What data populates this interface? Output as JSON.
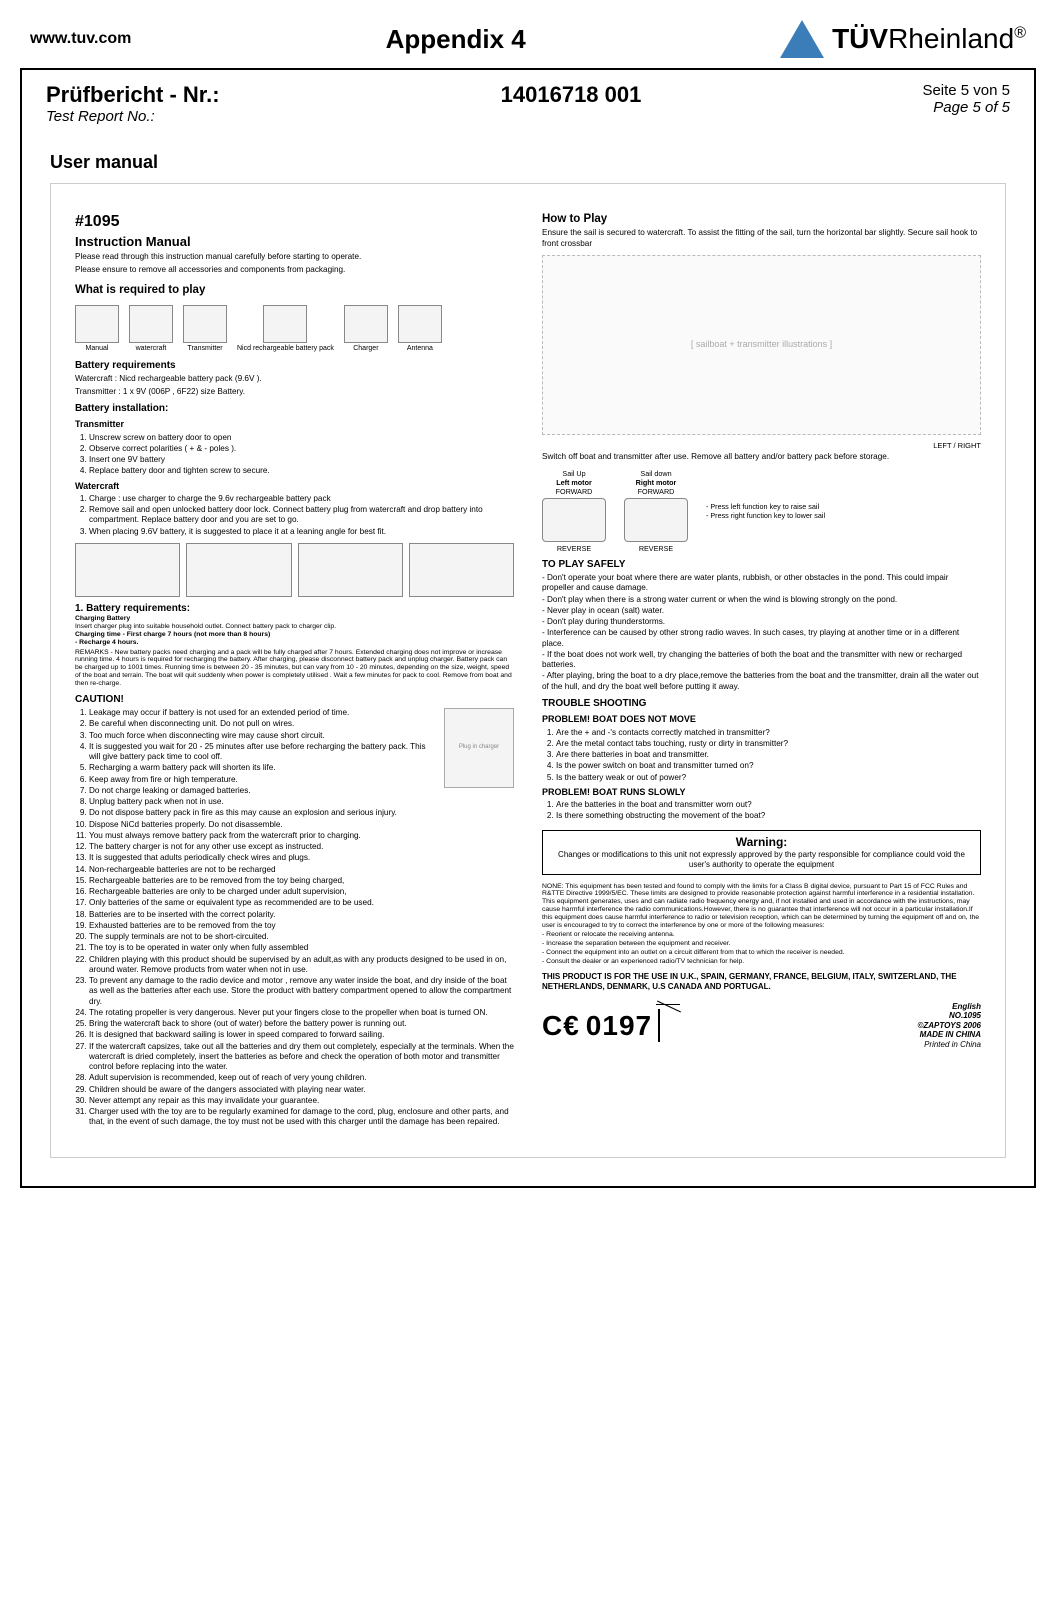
{
  "header": {
    "url": "www.tuv.com",
    "appendix": "Appendix 4",
    "logo_text_1": "TÜV",
    "logo_text_2": "Rheinland",
    "logo_reg": "®"
  },
  "report": {
    "title_de": "Prüfbericht - Nr.:",
    "title_en": "Test Report No.:",
    "number": "14016718 001",
    "page_de": "Seite 5 von 5",
    "page_en": "Page 5 of 5",
    "section": "User manual"
  },
  "manual": {
    "model": "#1095",
    "title": "Instruction Manual",
    "intro1": "Please read through this instruction manual carefully before starting to operate.",
    "intro2": "Please ensure to remove all accessories and components from packaging.",
    "h_required": "What is required to play",
    "icons": [
      "Manual",
      "watercraft",
      "Transmitter",
      "Nicd rechargeable battery pack",
      "Charger",
      "Antenna"
    ],
    "h_battery_req": "Battery requirements",
    "battery_req1": "Watercraft : Nicd rechargeable battery pack (9.6V ).",
    "battery_req2": "Transmitter : 1 x 9V (006P , 6F22) size Battery.",
    "h_batt_install": "Battery installation:",
    "h_transmitter": "Transmitter",
    "transmitter_steps": [
      "Unscrew screw on battery door to open",
      "Observe correct polarities ( + & - poles ).",
      "Insert one 9V battery",
      "Replace battery door and tighten screw to secure."
    ],
    "h_watercraft": "Watercraft",
    "watercraft_steps": [
      "Charge : use charger to charge the 9.6v rechargeable battery pack",
      "Remove sail and open unlocked battery door lock. Connect battery plug from watercraft and drop battery into compartment. Replace battery door and you are set to go.",
      "When placing 9.6V battery, it is suggested to place it at a leaning angle for best fit."
    ],
    "h_batt_req2": "1. Battery requirements:",
    "charging_head": "Charging Battery",
    "charging_l1": "Insert charger plug into suitable household outlet. Connect battery pack to charger clip.",
    "charging_l2": "Charging time - First charge 7 hours (not more than 8 hours)",
    "charging_l3": "- Recharge 4 hours.",
    "remarks": "REMARKS - New battery packs need charging and a pack will be fully charged after 7 hours. Extended charging does not improve or increase running time. 4 hours is required for recharging the battery. After charging, please disconnect battery pack and unplug charger. Battery pack can be charged up to 1001 times. Running time is between 20 - 35 minutes, but can vary from 10 - 20 minutes, depending on the size, weight, speed of the boat and terrain. The boat will quit suddenly when power is completely utilised . Wait a few minutes for pack to cool. Remove from boat and then re-charge.",
    "h_caution": "CAUTION!",
    "caution_items": [
      "Leakage may occur if battery is not used for an extended period of time.",
      "Be careful when disconnecting unit. Do not pull on wires.",
      "Too much force when disconnecting wire may cause short circuit.",
      "It is suggested you wait for 20 - 25 minutes after use before recharging the battery pack. This will give battery pack time to cool off.",
      "Recharging a warm battery pack will shorten its life.",
      "Keep away from fire or high temperature.",
      "Do not charge leaking or damaged batteries.",
      "Unplug battery pack when not in use.",
      "Do not dispose battery pack in fire as this may cause an explosion and serious injury.",
      "Dispose NiCd batteries properly. Do not disassemble.",
      "You must always remove battery pack from the watercraft prior to charging.",
      "The battery charger is not for any other use except as instructed.",
      "It is suggested that adults periodically check wires and plugs.",
      "Non-rechargeable batteries are not to be recharged",
      "Rechargeable batteries are to be removed from the toy being charged,",
      "Rechargeable batteries are only to be charged under adult supervision,",
      "Only batteries of the same or equivalent type as recommended are to be used.",
      "Batteries are to be inserted with the correct polarity.",
      "Exhausted batteries are to be removed from the toy",
      "The supply terminals are not to be short-circuited.",
      "The toy is to be operated in water only when fully assembled",
      "Children playing  with this product should be supervised by an adult,as with any products designed to be  used in on, around water. Remove products from water when not in use.",
      "To prevent any damage to the radio device and motor , remove any water inside the boat, and dry inside of the boat as  well as the batteries after each use. Store the product with battery compartment opened to allow the compartment dry.",
      "The rotating propeller is very dangerous. Never put your fingers close to the propeller when boat is turned ON.",
      "Bring the watercraft back to shore (out of water) before the battery power is running out.",
      "It is designed that backward sailing is lower in speed compared to forward sailing.",
      "If the watercraft capsizes, take out all the batteries and dry them out completely, especially at the terminals. When the watercraft is dried completely, insert the batteries as before and check the operation of both motor and transmitter control before  replacing into the water.",
      "Adult supervision is recommended, keep out of reach of very young children.",
      "Children should be aware of the dangers associated with playing near water.",
      "Never attempt any repair as this may invalidate your guarantee.",
      "Charger used with the toy are to be regularly examined for damage to the cord, plug, enclosure and other parts, and that, in the event of such damage, the toy must not be used with this charger until the damage has been repaired."
    ],
    "h_howplay": "How to Play",
    "howplay_p": "Ensure the sail is secured to watercraft. To assist the fitting of the sail, turn the horizontal bar slightly. Secure sail hook to front crossbar",
    "lr_label": "LEFT / RIGHT",
    "switchoff": "Switch off boat and  transmitter after use. Remove all battery and/or battery pack before storage.",
    "sailup": "Sail Up",
    "saildown": "Sail down",
    "leftmotor": "Left motor",
    "rightmotor": "Right motor",
    "forward": "FORWARD",
    "reverse": "REVERSE",
    "motor_notes": [
      "- Press left function key to raise sail",
      "- Press right function key to lower sail"
    ],
    "h_playsafe": "TO PLAY SAFELY",
    "playsafe_items": [
      "Don't operate your boat where there are water plants, rubbish, or other obstacles in the pond. This could impair propeller and cause damage.",
      "Don't play when there is a strong water current or when the wind is blowing strongly on the pond.",
      "Never play in ocean (salt) water.",
      "Don't play during thunderstorms.",
      "Interference can be caused by other strong radio waves. In such cases, try playing at another time or in a different place.",
      "If the boat does not work well, try changing the batteries of both the boat and the transmitter with new or recharged batteries.",
      "After playing, bring the boat to a dry place,remove the batteries from the boat  and the transmitter, drain all the water out of the hull, and dry the boat well  before putting it away."
    ],
    "h_trouble": "TROUBLE SHOOTING",
    "h_prob1": "PROBLEM! BOAT DOES NOT MOVE",
    "prob1_items": [
      "Are the + and -'s contacts correctly matched in transmitter?",
      "Are the metal contact tabs touching, rusty or dirty in transmitter?",
      "Are there batteries in boat and transmitter.",
      "Is the power switch on boat and transmitter turned on?",
      "Is the battery weak or out of power?"
    ],
    "h_prob2": "PROBLEM! BOAT RUNS SLOWLY",
    "prob2_items": [
      "Are the batteries in the boat and transmitter worn out?",
      "Is there something obstructing the movement of the boat?"
    ],
    "warning_title": "Warning:",
    "warning_text": "Changes or modifications to this unit not expressly approved by the party responsible for compliance could void the user's authority to operate the equipment",
    "fcc": "NONE: This equipment has been tested and found to comply with the limits for a Class B digital device, pursuant to Part 15 of FCC Rules and R&TTE Directive 1999/5/EC. These limits are designed to provide reasonable protection against harmful interference in a residential installation. This equipment generates, uses and can radiate radio frequency energy and, if not installed and used in accordance with the instructions, may cause harmful interference the radio communications.However, there is no guarantee that interference will not occur in a particular installation.If this equipment does cause harmful interference to radio or television reception, which can be determined by turning the equipment off and on, the user is encouraged to try to correct the interference by one or more of the following measures:",
    "fcc_items": [
      "Reorient or relocate the receiving antenna.",
      "Increase the separation between the equipment and receiver.",
      "Connect the equipment into an outlet on a circuit different from that to which the receiver is needed.",
      "Consult the dealer or an experienced radio/TV technician for help."
    ],
    "countries": "THIS PRODUCT IS FOR THE USE IN U.K., SPAIN, GERMANY, FRANCE, BELGIUM, ITALY, SWITZERLAND, THE NETHERLANDS, DENMARK, U.S CANADA AND PORTUGAL.",
    "ce": "0197",
    "imprint": [
      "English",
      "NO.1095",
      "©ZAPTOYS 2006",
      "MADE IN CHINA",
      "Printed in China"
    ]
  }
}
